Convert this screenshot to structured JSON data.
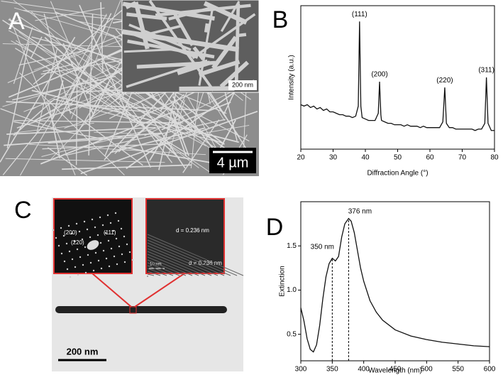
{
  "panels": {
    "a": {
      "label": "A",
      "inset_scale": "200 nm",
      "scale": "4 µm"
    },
    "c": {
      "label": "C",
      "saed_labels": [
        "(200)",
        "(111)",
        "(220)"
      ],
      "fringe_labels": [
        "d = 0.236 nm",
        "d = 0.236 nm"
      ],
      "inset_scale": "10 nm",
      "scale": "200 nm"
    }
  },
  "chart_data": [
    {
      "type": "line",
      "label": "B",
      "xlabel": "Diffraction Angle (°)",
      "ylabel": "Intensity (a.u.)",
      "xlim": [
        20,
        80
      ],
      "xticks": [
        20,
        30,
        40,
        50,
        60,
        70,
        80
      ],
      "ylim": [
        0,
        100
      ],
      "series": [
        {
          "color": "#111111",
          "x": [
            20,
            21,
            22,
            23,
            24,
            25,
            26,
            27,
            28,
            29,
            30,
            31,
            32,
            33,
            34,
            35,
            36,
            37,
            37.8,
            38.2,
            38.6,
            39,
            40,
            41,
            42,
            43,
            44,
            44.4,
            44.8,
            45,
            46,
            47,
            48,
            49,
            50,
            51,
            52,
            53,
            54,
            55,
            56,
            57,
            58,
            59,
            60,
            61,
            62,
            63,
            64,
            64.6,
            65.1,
            66,
            67,
            68,
            69,
            70,
            71,
            72,
            73,
            74,
            75,
            76,
            77,
            77.5,
            78,
            79,
            80
          ],
          "values": [
            31,
            30,
            31,
            29,
            30,
            28,
            29,
            27,
            28,
            26,
            26,
            25,
            24,
            24,
            23,
            23,
            22,
            23,
            30,
            89,
            30,
            22,
            21,
            20,
            20,
            20,
            25,
            47,
            24,
            20,
            19,
            18,
            18,
            17,
            17,
            17,
            16,
            17,
            16,
            16,
            16,
            15,
            16,
            15,
            15,
            15,
            15,
            15,
            19,
            43,
            18,
            15,
            15,
            14,
            14,
            14,
            14,
            14,
            14,
            13,
            14,
            14,
            18,
            50,
            18,
            13,
            13
          ]
        }
      ],
      "annotations": [
        {
          "text": "(111)",
          "x": 38.2,
          "y": 89
        },
        {
          "text": "(200)",
          "x": 44.4,
          "y": 47
        },
        {
          "text": "(220)",
          "x": 64.6,
          "y": 43
        },
        {
          "text": "(311)",
          "x": 77.5,
          "y": 50
        }
      ]
    },
    {
      "type": "line",
      "label": "D",
      "xlabel": "Wavelength (nm)",
      "ylabel": "Extinction",
      "xlim": [
        300,
        600
      ],
      "xticks": [
        300,
        350,
        400,
        450,
        500,
        550,
        600
      ],
      "ylim": [
        0.2,
        2.0
      ],
      "yticks": [
        0.5,
        {
          "value": 1,
          "label": "1.0"
        },
        1.5
      ],
      "series": [
        {
          "color": "#111111",
          "x": [
            300,
            305,
            310,
            315,
            320,
            325,
            330,
            335,
            340,
            345,
            350,
            355,
            360,
            365,
            370,
            376,
            380,
            385,
            390,
            395,
            400,
            410,
            420,
            430,
            450,
            475,
            500,
            525,
            550,
            575,
            600
          ],
          "values": [
            0.8,
            0.65,
            0.45,
            0.33,
            0.3,
            0.38,
            0.6,
            0.9,
            1.15,
            1.3,
            1.36,
            1.33,
            1.38,
            1.6,
            1.75,
            1.81,
            1.78,
            1.65,
            1.45,
            1.25,
            1.1,
            0.88,
            0.75,
            0.66,
            0.55,
            0.48,
            0.44,
            0.41,
            0.39,
            0.37,
            0.36
          ]
        }
      ],
      "annotations": [
        {
          "text": "350 nm",
          "x": 350,
          "y": 1.36
        },
        {
          "text": "376 nm",
          "x": 376,
          "y": 1.81
        }
      ]
    }
  ]
}
